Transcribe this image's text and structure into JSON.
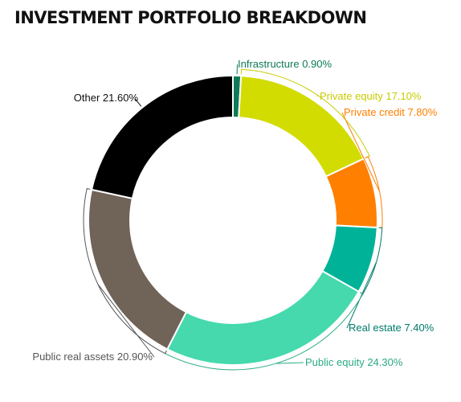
{
  "chart_data": {
    "type": "pie",
    "title": "INVESTMENT PORTFOLIO BREAKDOWN",
    "donut": true,
    "slices": [
      {
        "name": "Infrastructure",
        "value": 0.9,
        "label": "Infrastructure 0.90%",
        "color": "#0e7a5a",
        "label_color": "#0e7a5a"
      },
      {
        "name": "Private equity",
        "value": 17.1,
        "label": "Private equity 17.10%",
        "color": "#d2dc00",
        "label_color": "#c8cc00"
      },
      {
        "name": "Private credit",
        "value": 7.8,
        "label": "Private credit 7.80%",
        "color": "#ff7f00",
        "label_color": "#ff7f00"
      },
      {
        "name": "Real estate",
        "value": 7.4,
        "label": "Real estate 7.40%",
        "color": "#00b398",
        "label_color": "#007a6a"
      },
      {
        "name": "Public equity",
        "value": 24.3,
        "label": "Public equity 24.30%",
        "color": "#45d9ad",
        "label_color": "#2aaa85"
      },
      {
        "name": "Public real assets",
        "value": 20.9,
        "label": "Public real assets 20.90%",
        "color": "#706358",
        "label_color": "#555555"
      },
      {
        "name": "Other",
        "value": 21.6,
        "label": "Other 21.60%",
        "color": "#000000",
        "label_color": "#111111"
      }
    ]
  }
}
